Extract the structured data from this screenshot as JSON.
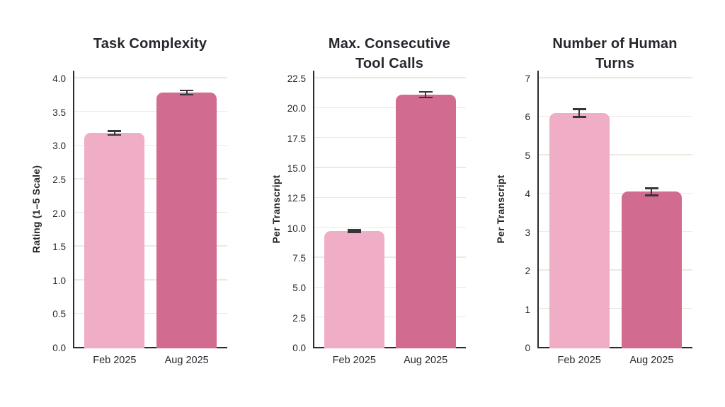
{
  "page": {
    "background": "#ffffff"
  },
  "style": {
    "bar_color_light": "#efadc6",
    "bar_color_dark": "#d16b90",
    "axis_color": "#2b2b31",
    "text_color": "#28282e",
    "gridline_color": "#ede9df",
    "errorbar_color": "#35353b"
  },
  "chart_data": [
    {
      "type": "bar",
      "title": "Task Complexity",
      "ylabel": "Rating (1–5 Scale)",
      "xlabel": "",
      "categories": [
        "Feb 2025",
        "Aug 2025"
      ],
      "values": [
        3.2,
        3.8
      ],
      "errors": [
        0.03,
        0.03
      ],
      "bar_colors": [
        "#efadc6",
        "#d16b90"
      ],
      "ylim": [
        0,
        4.0
      ],
      "yticks": [
        0,
        0.5,
        1.0,
        1.5,
        2.0,
        2.5,
        3.0,
        3.5,
        4.0
      ],
      "ytick_labels": [
        "0.0",
        "0.5",
        "1.0",
        "1.5",
        "2.0",
        "2.5",
        "3.0",
        "3.5",
        "4.0"
      ],
      "grid": true,
      "legend": null
    },
    {
      "type": "bar",
      "title": "Max. Consecutive Tool Calls",
      "ylabel": "Per Transcript",
      "xlabel": "",
      "categories": [
        "Feb 2025",
        "Aug 2025"
      ],
      "values": [
        9.8,
        21.2
      ],
      "errors": [
        0.1,
        0.25
      ],
      "bar_colors": [
        "#efadc6",
        "#d16b90"
      ],
      "ylim": [
        0,
        22.5
      ],
      "yticks": [
        0,
        2.5,
        5.0,
        7.5,
        10.0,
        12.5,
        15.0,
        17.5,
        20.0,
        22.5
      ],
      "ytick_labels": [
        "0.0",
        "2.5",
        "5.0",
        "7.5",
        "10.0",
        "12.5",
        "15.0",
        "17.5",
        "20.0",
        "22.5"
      ],
      "grid": true,
      "legend": null
    },
    {
      "type": "bar",
      "title": "Number of Human Turns",
      "ylabel": "Per Transcript",
      "xlabel": "",
      "categories": [
        "Feb 2025",
        "Aug 2025"
      ],
      "values": [
        6.12,
        4.07
      ],
      "errors": [
        0.1,
        0.09
      ],
      "bar_colors": [
        "#efadc6",
        "#d16b90"
      ],
      "ylim": [
        0,
        7
      ],
      "yticks": [
        0,
        1,
        2,
        3,
        4,
        5,
        6,
        7
      ],
      "ytick_labels": [
        "0",
        "1",
        "2",
        "3",
        "4",
        "5",
        "6",
        "7"
      ],
      "grid": true,
      "legend": null
    }
  ]
}
